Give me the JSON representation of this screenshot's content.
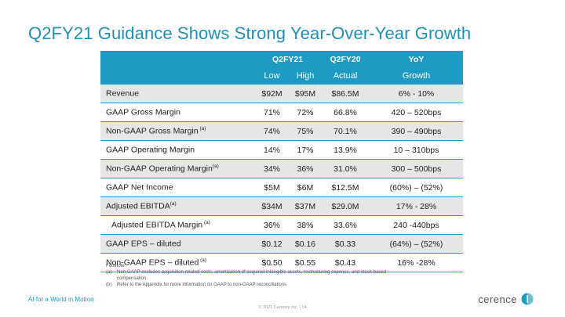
{
  "title": "Q2FY21 Guidance Shows Strong Year-Over-Year Growth",
  "table": {
    "group_headers": [
      "",
      "Q2FY21",
      "Q2FY20",
      "YoY"
    ],
    "sub_headers": [
      "",
      "Low",
      "High",
      "Actual",
      "Growth"
    ],
    "rows": [
      {
        "label": "Revenue",
        "sup": "",
        "low": "$92M",
        "high": "$95M",
        "actual": "$86.5M",
        "growth": "6% - 10%"
      },
      {
        "label": "GAAP Gross Margin",
        "sup": "",
        "low": "71%",
        "high": "72%",
        "actual": "66.8%",
        "growth": "420 – 520bps"
      },
      {
        "label": "Non-GAAP Gross Margin",
        "sup": " (a)",
        "low": "74%",
        "high": "75%",
        "actual": "70.1%",
        "growth": "390 – 490bps"
      },
      {
        "label": "GAAP Operating Margin",
        "sup": "",
        "low": "14%",
        "high": "17%",
        "actual": "13.9%",
        "growth": "10 – 310bps"
      },
      {
        "label": "Non-GAAP Operating Margin",
        "sup": "(a)",
        "low": "34%",
        "high": "36%",
        "actual": "31.0%",
        "growth": "300 – 500bps"
      },
      {
        "label": "GAAP Net Income",
        "sup": "",
        "low": "$5M",
        "high": "$6M",
        "actual": "$12.5M",
        "growth": "(60%) – (52%)"
      },
      {
        "label": "Adjusted EBITDA",
        "sup": "(a)",
        "low": "$34M",
        "high": "$37M",
        "actual": "$29.0M",
        "growth": "17% - 28%"
      },
      {
        "label": "Adjusted EBITDA Margin",
        "sup": " (a)",
        "low": "36%",
        "high": "38%",
        "actual": "33.6%",
        "growth": "240 -440bps"
      },
      {
        "label": "GAAP EPS – diluted",
        "sup": "",
        "low": "$0.12",
        "high": "$0.16",
        "actual": "$0.33",
        "growth": "(64%) – (52%)"
      },
      {
        "label": "Non-GAAP EPS – diluted",
        "sup": " (a)",
        "low": "$0.50",
        "high": "$0.55",
        "actual": "$0.43",
        "growth": "16% -28%"
      }
    ]
  },
  "footnote": {
    "heading": "Footnote:",
    "items": [
      {
        "mark": "(a)",
        "text": "Non-GAAP excludes acquisition-related costs, amortization of acquired intangible assets, restructuring expense, and stock-based compensation."
      },
      {
        "mark": "(b)",
        "text": "Refer to the Appendix for more information on GAAP to non-GAAP reconciliations"
      }
    ]
  },
  "tagline": "AI for a World in Motion",
  "copyright": "© 2021 Cerence Inc.  | 14",
  "logo": {
    "text": "cerence",
    "icon": "cerence-logo-icon"
  },
  "colors": {
    "accent": "#1e9bc4",
    "title": "#1f8fb5",
    "shade": "#e6e6e6"
  }
}
